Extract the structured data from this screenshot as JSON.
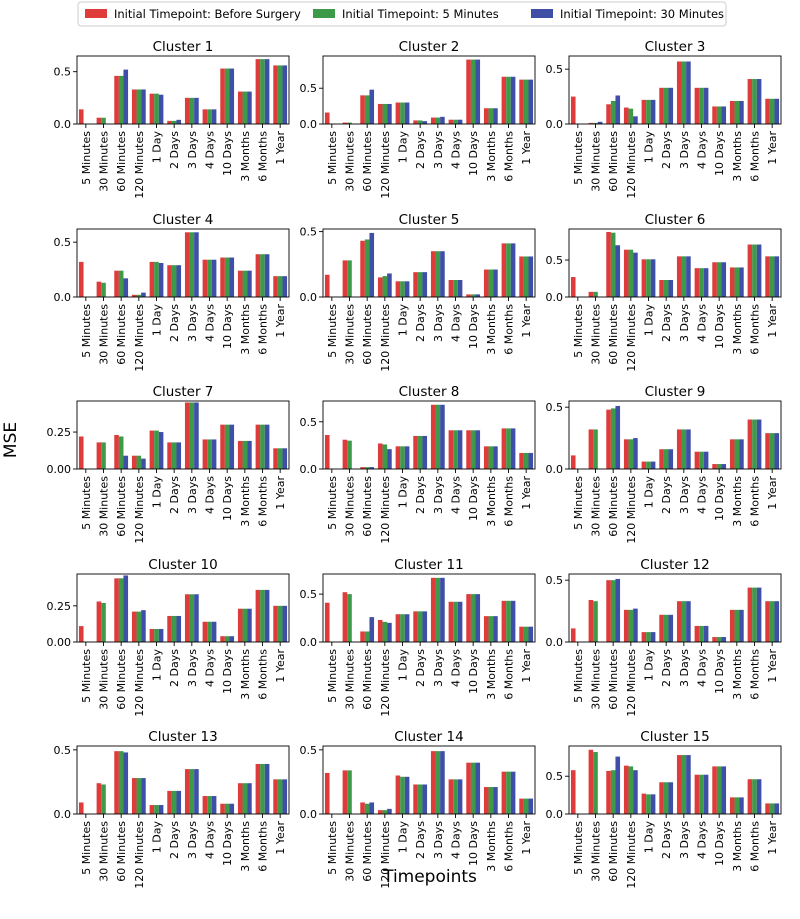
{
  "chart_data": {
    "type": "bar",
    "xlabel": "Timepoints",
    "ylabel": "MSE",
    "legend": {
      "placement": "top-center",
      "ncols": 3
    },
    "series": [
      {
        "name": "Initial Timepoint: Before Surgery",
        "color": "#e03b3b"
      },
      {
        "name": "Initial Timepoint: 5 Minutes",
        "color": "#3c9a48"
      },
      {
        "name": "Initial Timepoint: 30 Minutes",
        "color": "#3f4fa8"
      }
    ],
    "categories": [
      "5 Minutes",
      "30 Minutes",
      "60 Minutes",
      "120 Minutes",
      "1 Day",
      "2 Days",
      "3 Days",
      "4 Days",
      "10 Days",
      "3 Months",
      "6 Months",
      "1 Year"
    ],
    "panels": [
      {
        "title": "Cluster 1",
        "ylim": [
          0,
          0.65
        ],
        "yticks": [
          0,
          0.5
        ],
        "ytick_labels": [
          "0.0",
          "0.5"
        ],
        "values": [
          [
            0.14,
            null,
            null
          ],
          [
            0.06,
            0.06,
            null
          ],
          [
            0.46,
            0.46,
            0.52
          ],
          [
            0.33,
            0.33,
            0.33
          ],
          [
            0.29,
            0.29,
            0.28
          ],
          [
            0.03,
            0.03,
            0.04
          ],
          [
            0.25,
            0.25,
            0.25
          ],
          [
            0.14,
            0.14,
            0.14
          ],
          [
            0.53,
            0.53,
            0.53
          ],
          [
            0.31,
            0.31,
            0.31
          ],
          [
            0.62,
            0.62,
            0.62
          ],
          [
            0.56,
            0.56,
            0.56
          ]
        ]
      },
      {
        "title": "Cluster 2",
        "ylim": [
          0,
          0.95
        ],
        "yticks": [
          0,
          0.5
        ],
        "ytick_labels": [
          "0.0",
          "0.5"
        ],
        "values": [
          [
            0.16,
            null,
            null
          ],
          [
            0.02,
            0.02,
            null
          ],
          [
            0.4,
            0.4,
            0.48
          ],
          [
            0.28,
            0.28,
            0.28
          ],
          [
            0.3,
            0.3,
            0.3
          ],
          [
            0.05,
            0.05,
            0.04
          ],
          [
            0.09,
            0.09,
            0.1
          ],
          [
            0.06,
            0.06,
            0.06
          ],
          [
            0.9,
            0.9,
            0.9
          ],
          [
            0.22,
            0.22,
            0.22
          ],
          [
            0.66,
            0.66,
            0.66
          ],
          [
            0.62,
            0.62,
            0.62
          ]
        ]
      },
      {
        "title": "Cluster 3",
        "ylim": [
          0,
          0.62
        ],
        "yticks": [
          0,
          0.5
        ],
        "ytick_labels": [
          "0.0",
          "0.5"
        ],
        "values": [
          [
            0.25,
            null,
            null
          ],
          [
            0.01,
            0.01,
            0.02
          ],
          [
            0.18,
            0.21,
            0.26
          ],
          [
            0.15,
            0.14,
            0.07
          ],
          [
            0.22,
            0.22,
            0.22
          ],
          [
            0.33,
            0.33,
            0.33
          ],
          [
            0.57,
            0.57,
            0.57
          ],
          [
            0.33,
            0.33,
            0.33
          ],
          [
            0.16,
            0.16,
            0.16
          ],
          [
            0.21,
            0.21,
            0.21
          ],
          [
            0.41,
            0.41,
            0.41
          ],
          [
            0.23,
            0.23,
            0.23
          ]
        ]
      },
      {
        "title": "Cluster 4",
        "ylim": [
          0,
          0.62
        ],
        "yticks": [
          0,
          0.5
        ],
        "ytick_labels": [
          "0.0",
          "0.5"
        ],
        "values": [
          [
            0.32,
            null,
            null
          ],
          [
            0.14,
            0.13,
            null
          ],
          [
            0.24,
            0.24,
            0.17
          ],
          [
            0.02,
            0.02,
            0.04
          ],
          [
            0.32,
            0.32,
            0.31
          ],
          [
            0.29,
            0.29,
            0.29
          ],
          [
            0.59,
            0.59,
            0.59
          ],
          [
            0.34,
            0.34,
            0.34
          ],
          [
            0.36,
            0.36,
            0.36
          ],
          [
            0.24,
            0.24,
            0.24
          ],
          [
            0.39,
            0.39,
            0.39
          ],
          [
            0.19,
            0.19,
            0.19
          ]
        ]
      },
      {
        "title": "Cluster 5",
        "ylim": [
          0,
          0.52
        ],
        "yticks": [
          0,
          0.5
        ],
        "ytick_labels": [
          "0.0",
          "0.5"
        ],
        "values": [
          [
            0.17,
            null,
            null
          ],
          [
            0.28,
            0.28,
            null
          ],
          [
            0.43,
            0.44,
            0.49
          ],
          [
            0.15,
            0.16,
            0.18
          ],
          [
            0.12,
            0.12,
            0.12
          ],
          [
            0.19,
            0.19,
            0.19
          ],
          [
            0.35,
            0.35,
            0.35
          ],
          [
            0.13,
            0.13,
            0.13
          ],
          [
            0.02,
            0.02,
            0.02
          ],
          [
            0.21,
            0.21,
            0.21
          ],
          [
            0.41,
            0.41,
            0.41
          ],
          [
            0.31,
            0.31,
            0.31
          ]
        ]
      },
      {
        "title": "Cluster 6",
        "ylim": [
          0,
          0.92
        ],
        "yticks": [
          0,
          0.5
        ],
        "ytick_labels": [
          "0.0",
          "0.5"
        ],
        "values": [
          [
            0.27,
            null,
            null
          ],
          [
            0.07,
            0.07,
            null
          ],
          [
            0.88,
            0.87,
            0.7
          ],
          [
            0.64,
            0.64,
            0.6
          ],
          [
            0.51,
            0.51,
            0.51
          ],
          [
            0.23,
            0.23,
            0.23
          ],
          [
            0.55,
            0.55,
            0.55
          ],
          [
            0.39,
            0.39,
            0.39
          ],
          [
            0.47,
            0.47,
            0.47
          ],
          [
            0.4,
            0.4,
            0.4
          ],
          [
            0.71,
            0.71,
            0.71
          ],
          [
            0.55,
            0.55,
            0.55
          ]
        ]
      },
      {
        "title": "Cluster 7",
        "ylim": [
          0,
          0.46
        ],
        "yticks": [
          0,
          0.25
        ],
        "ytick_labels": [
          "0.00",
          "0.25"
        ],
        "values": [
          [
            0.22,
            null,
            null
          ],
          [
            0.18,
            0.18,
            null
          ],
          [
            0.23,
            0.22,
            0.09
          ],
          [
            0.09,
            0.09,
            0.07
          ],
          [
            0.26,
            0.26,
            0.25
          ],
          [
            0.18,
            0.18,
            0.18
          ],
          [
            0.45,
            0.45,
            0.45
          ],
          [
            0.2,
            0.2,
            0.2
          ],
          [
            0.3,
            0.3,
            0.3
          ],
          [
            0.19,
            0.19,
            0.19
          ],
          [
            0.3,
            0.3,
            0.3
          ],
          [
            0.14,
            0.14,
            0.14
          ]
        ]
      },
      {
        "title": "Cluster 8",
        "ylim": [
          0,
          0.72
        ],
        "yticks": [
          0,
          0.5
        ],
        "ytick_labels": [
          "0.0",
          "0.5"
        ],
        "values": [
          [
            0.36,
            null,
            null
          ],
          [
            0.31,
            0.3,
            null
          ],
          [
            0.02,
            0.02,
            0.02
          ],
          [
            0.27,
            0.26,
            0.21
          ],
          [
            0.24,
            0.24,
            0.24
          ],
          [
            0.35,
            0.35,
            0.35
          ],
          [
            0.68,
            0.68,
            0.68
          ],
          [
            0.41,
            0.41,
            0.41
          ],
          [
            0.41,
            0.41,
            0.41
          ],
          [
            0.24,
            0.24,
            0.24
          ],
          [
            0.43,
            0.43,
            0.43
          ],
          [
            0.17,
            0.17,
            0.17
          ]
        ]
      },
      {
        "title": "Cluster 9",
        "ylim": [
          0,
          0.55
        ],
        "yticks": [
          0,
          0.5
        ],
        "ytick_labels": [
          "0.0",
          "0.5"
        ],
        "values": [
          [
            0.11,
            null,
            null
          ],
          [
            0.32,
            0.32,
            null
          ],
          [
            0.48,
            0.49,
            0.51
          ],
          [
            0.24,
            0.24,
            0.25
          ],
          [
            0.06,
            0.06,
            0.06
          ],
          [
            0.16,
            0.16,
            0.16
          ],
          [
            0.32,
            0.32,
            0.32
          ],
          [
            0.14,
            0.14,
            0.14
          ],
          [
            0.04,
            0.04,
            0.04
          ],
          [
            0.24,
            0.24,
            0.24
          ],
          [
            0.4,
            0.4,
            0.4
          ],
          [
            0.29,
            0.29,
            0.29
          ]
        ]
      },
      {
        "title": "Cluster 10",
        "ylim": [
          0,
          0.47
        ],
        "yticks": [
          0,
          0.25
        ],
        "ytick_labels": [
          "0.00",
          "0.25"
        ],
        "values": [
          [
            0.11,
            null,
            null
          ],
          [
            0.28,
            0.27,
            null
          ],
          [
            0.44,
            0.44,
            0.46
          ],
          [
            0.21,
            0.21,
            0.22
          ],
          [
            0.09,
            0.09,
            0.09
          ],
          [
            0.18,
            0.18,
            0.18
          ],
          [
            0.33,
            0.33,
            0.33
          ],
          [
            0.14,
            0.14,
            0.14
          ],
          [
            0.04,
            0.04,
            0.04
          ],
          [
            0.23,
            0.23,
            0.23
          ],
          [
            0.36,
            0.36,
            0.36
          ],
          [
            0.25,
            0.25,
            0.25
          ]
        ]
      },
      {
        "title": "Cluster 11",
        "ylim": [
          0,
          0.71
        ],
        "yticks": [
          0,
          0.5
        ],
        "ytick_labels": [
          "0.0",
          "0.5"
        ],
        "values": [
          [
            0.41,
            null,
            null
          ],
          [
            0.52,
            0.5,
            null
          ],
          [
            0.11,
            0.11,
            0.26
          ],
          [
            0.23,
            0.21,
            0.2
          ],
          [
            0.29,
            0.29,
            0.29
          ],
          [
            0.32,
            0.32,
            0.32
          ],
          [
            0.67,
            0.67,
            0.67
          ],
          [
            0.42,
            0.42,
            0.42
          ],
          [
            0.5,
            0.5,
            0.5
          ],
          [
            0.27,
            0.27,
            0.27
          ],
          [
            0.43,
            0.43,
            0.43
          ],
          [
            0.16,
            0.16,
            0.16
          ]
        ]
      },
      {
        "title": "Cluster 12",
        "ylim": [
          0,
          0.55
        ],
        "yticks": [
          0,
          0.5
        ],
        "ytick_labels": [
          "0.0",
          "0.5"
        ],
        "values": [
          [
            0.11,
            null,
            null
          ],
          [
            0.34,
            0.33,
            null
          ],
          [
            0.5,
            0.5,
            0.51
          ],
          [
            0.26,
            0.26,
            0.27
          ],
          [
            0.08,
            0.08,
            0.08
          ],
          [
            0.22,
            0.22,
            0.22
          ],
          [
            0.33,
            0.33,
            0.33
          ],
          [
            0.13,
            0.13,
            0.13
          ],
          [
            0.04,
            0.04,
            0.04
          ],
          [
            0.26,
            0.26,
            0.26
          ],
          [
            0.44,
            0.44,
            0.44
          ],
          [
            0.33,
            0.33,
            0.33
          ]
        ]
      },
      {
        "title": "Cluster 13",
        "ylim": [
          0,
          0.53
        ],
        "yticks": [
          0,
          0.5
        ],
        "ytick_labels": [
          "0.0",
          "0.5"
        ],
        "values": [
          [
            0.09,
            null,
            null
          ],
          [
            0.24,
            0.23,
            null
          ],
          [
            0.49,
            0.49,
            0.48
          ],
          [
            0.28,
            0.28,
            0.28
          ],
          [
            0.07,
            0.07,
            0.07
          ],
          [
            0.18,
            0.18,
            0.18
          ],
          [
            0.35,
            0.35,
            0.35
          ],
          [
            0.14,
            0.14,
            0.14
          ],
          [
            0.08,
            0.08,
            0.08
          ],
          [
            0.24,
            0.24,
            0.24
          ],
          [
            0.39,
            0.39,
            0.39
          ],
          [
            0.27,
            0.27,
            0.27
          ]
        ]
      },
      {
        "title": "Cluster 14",
        "ylim": [
          0,
          0.53
        ],
        "yticks": [
          0,
          0.5
        ],
        "ytick_labels": [
          "0.0",
          "0.5"
        ],
        "values": [
          [
            0.32,
            null,
            null
          ],
          [
            0.34,
            0.34,
            null
          ],
          [
            0.09,
            0.08,
            0.09
          ],
          [
            0.03,
            0.03,
            0.04
          ],
          [
            0.3,
            0.29,
            0.29
          ],
          [
            0.23,
            0.23,
            0.23
          ],
          [
            0.49,
            0.49,
            0.49
          ],
          [
            0.27,
            0.27,
            0.27
          ],
          [
            0.4,
            0.4,
            0.4
          ],
          [
            0.21,
            0.21,
            0.21
          ],
          [
            0.33,
            0.33,
            0.33
          ],
          [
            0.12,
            0.12,
            0.12
          ]
        ]
      },
      {
        "title": "Cluster 15",
        "ylim": [
          0,
          0.9
        ],
        "yticks": [
          0,
          0.5
        ],
        "ytick_labels": [
          "0.0",
          "0.5"
        ],
        "values": [
          [
            0.58,
            null,
            null
          ],
          [
            0.85,
            0.82,
            null
          ],
          [
            0.57,
            0.58,
            0.76
          ],
          [
            0.64,
            0.63,
            0.58
          ],
          [
            0.27,
            0.26,
            0.26
          ],
          [
            0.42,
            0.42,
            0.42
          ],
          [
            0.78,
            0.78,
            0.78
          ],
          [
            0.52,
            0.52,
            0.52
          ],
          [
            0.63,
            0.63,
            0.63
          ],
          [
            0.22,
            0.22,
            0.22
          ],
          [
            0.46,
            0.46,
            0.46
          ],
          [
            0.14,
            0.14,
            0.14
          ]
        ]
      }
    ]
  }
}
